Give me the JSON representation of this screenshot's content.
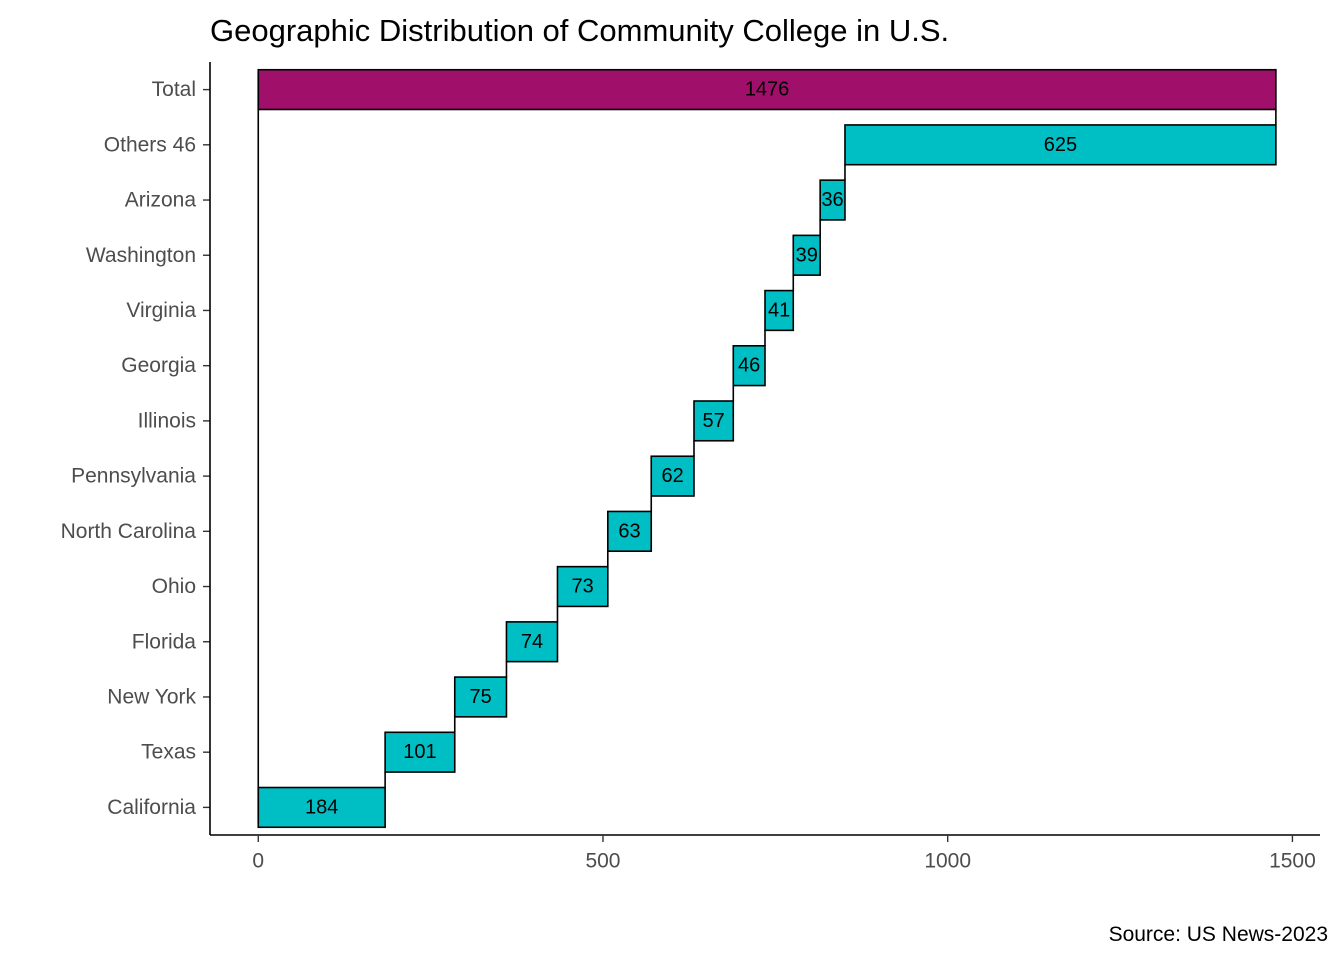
{
  "chart_data": {
    "type": "bar",
    "subtype": "waterfall",
    "orientation": "horizontal",
    "title": "Geographic Distribution of Community College in U.S.",
    "caption": "Source: US News-2023",
    "xlabel": "",
    "ylabel": "",
    "xlim": [
      -70,
      1540
    ],
    "xticks": [
      0,
      500,
      1000,
      1500
    ],
    "grid": false,
    "legend": "none",
    "categories": [
      "California",
      "Texas",
      "New York",
      "Florida",
      "Ohio",
      "North Carolina",
      "Pennsylvania",
      "Illinois",
      "Georgia",
      "Virginia",
      "Washington",
      "Arizona",
      "Others 46",
      "Total"
    ],
    "values": [
      184,
      101,
      75,
      74,
      73,
      63,
      62,
      57,
      46,
      41,
      39,
      36,
      625,
      1476
    ],
    "total_category": "Total",
    "colors": {
      "step": "#00bfc4",
      "total": "#a0106b",
      "outline": "#000000"
    }
  }
}
